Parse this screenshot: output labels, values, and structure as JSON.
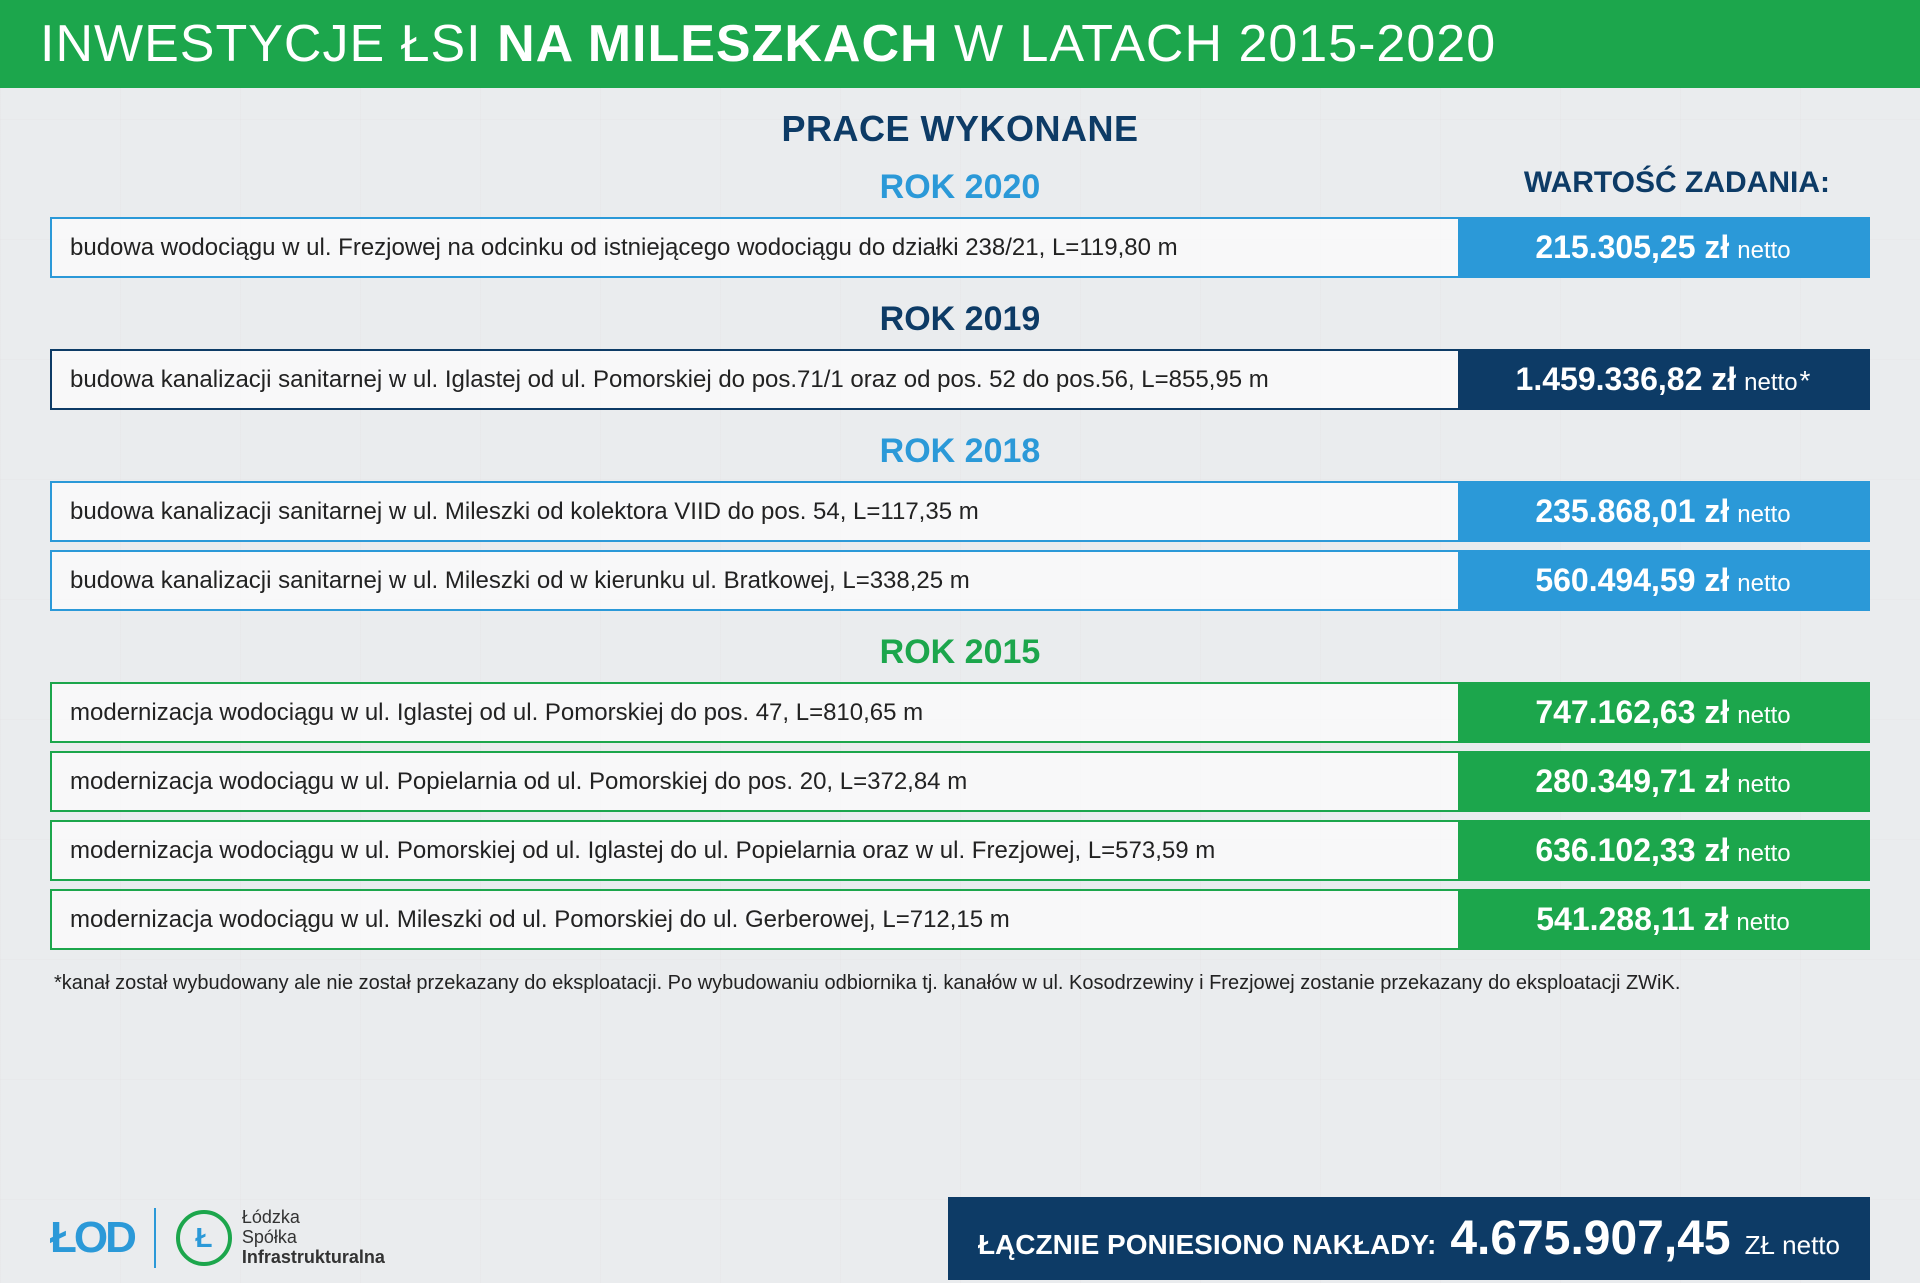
{
  "header": {
    "part1": "INWESTYCJE ŁSI ",
    "part2_bold": "NA MILESZKACH",
    "part3": " W LATACH 2015-2020",
    "bg_color": "#1ca64c",
    "text_color": "#ffffff"
  },
  "subtitle": "PRACE WYKONANE",
  "task_value_label": "WARTOŚĆ ZADANIA:",
  "years": [
    {
      "title": "ROK 2020",
      "title_color": "#2b99d8",
      "border_color": "#2b99d8",
      "value_bg": "#2b99d8",
      "items": [
        {
          "desc": "budowa wodociągu w ul. Frezjowej na odcinku od istniejącego wodociągu do działki 238/21, L=119,80 m",
          "amount": "215.305,25 zł",
          "unit": "netto",
          "asterisk": ""
        }
      ]
    },
    {
      "title": "ROK 2019",
      "title_color": "#0d3b66",
      "border_color": "#0d3b66",
      "value_bg": "#0d3b66",
      "items": [
        {
          "desc": "budowa kanalizacji sanitarnej w ul. Iglastej od ul. Pomorskiej do pos.71/1 oraz od pos. 52 do pos.56, L=855,95 m",
          "amount": "1.459.336,82 zł",
          "unit": "netto",
          "asterisk": "*"
        }
      ]
    },
    {
      "title": "ROK 2018",
      "title_color": "#2b99d8",
      "border_color": "#2b99d8",
      "value_bg": "#2b99d8",
      "items": [
        {
          "desc": "budowa kanalizacji sanitarnej w ul. Mileszki od kolektora VIID do pos. 54, L=117,35 m",
          "amount": "235.868,01 zł",
          "unit": "netto",
          "asterisk": ""
        },
        {
          "desc": "budowa kanalizacji sanitarnej w ul. Mileszki od  w kierunku ul. Bratkowej, L=338,25 m",
          "amount": "560.494,59 zł",
          "unit": "netto",
          "asterisk": ""
        }
      ]
    },
    {
      "title": "ROK 2015",
      "title_color": "#1ca64c",
      "border_color": "#1ca64c",
      "value_bg": "#1ca64c",
      "items": [
        {
          "desc": "modernizacja wodociągu w ul. Iglastej od ul. Pomorskiej do pos. 47, L=810,65 m",
          "amount": "747.162,63 zł",
          "unit": "netto",
          "asterisk": ""
        },
        {
          "desc": "modernizacja wodociągu w ul. Popielarnia od ul. Pomorskiej do pos. 20, L=372,84 m",
          "amount": "280.349,71 zł",
          "unit": "netto",
          "asterisk": ""
        },
        {
          "desc": "modernizacja wodociągu w ul. Pomorskiej od ul. Iglastej do ul. Popielarnia oraz w ul. Frezjowej, L=573,59 m",
          "amount": "636.102,33 zł",
          "unit": "netto",
          "asterisk": ""
        },
        {
          "desc": "modernizacja wodociągu w ul. Mileszki od ul. Pomorskiej do ul. Gerberowej, L=712,15 m",
          "amount": "541.288,11 zł",
          "unit": "netto",
          "asterisk": ""
        }
      ]
    }
  ],
  "footnote": "*kanał został wybudowany ale nie został przekazany do eksploatacji. Po wybudowaniu odbiornika tj. kanałów w ul. Kosodrzewiny i Frezjowej zostanie przekazany do eksploatacji ZWiK.",
  "footer": {
    "logo_lodz": "ŁOD",
    "lsi_symbol": "Ł",
    "lsi_line1": "Łódzka",
    "lsi_line2": "Spółka",
    "lsi_line3": "Infrastrukturalna",
    "total_label": "ŁĄCZNIE PONIESIONO NAKŁADY:",
    "total_amount": "4.675.907,45",
    "total_unit": "ZŁ netto",
    "total_bg": "#0d3b66"
  }
}
